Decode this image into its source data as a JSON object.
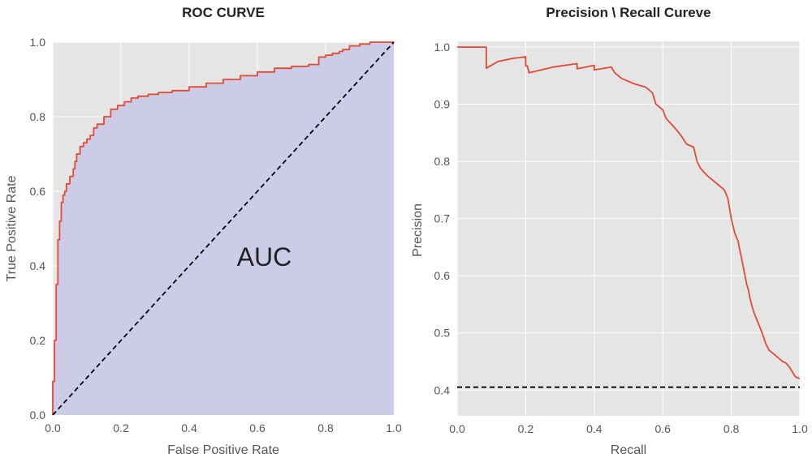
{
  "chart_data": [
    {
      "type": "area",
      "title": "ROC CURVE",
      "xlabel": "False Positive Rate",
      "ylabel": "True Positive Rate",
      "xlim": [
        0,
        1
      ],
      "ylim": [
        0,
        1
      ],
      "xticks": [
        "0.0",
        "0.2",
        "0.4",
        "0.6",
        "0.8",
        "1.0"
      ],
      "yticks": [
        "0.0",
        "0.2",
        "0.4",
        "0.6",
        "0.8",
        "1.0"
      ],
      "grid": true,
      "annotation": "AUC",
      "series": [
        {
          "role": "roc",
          "style": "step",
          "color": "#E24A33",
          "fill": "#CCCCE8",
          "x": [
            0,
            0,
            0.005,
            0.005,
            0.01,
            0.01,
            0.015,
            0.015,
            0.02,
            0.02,
            0.025,
            0.03,
            0.035,
            0.04,
            0.05,
            0.06,
            0.065,
            0.07,
            0.08,
            0.09,
            0.1,
            0.11,
            0.12,
            0.13,
            0.15,
            0.17,
            0.19,
            0.21,
            0.23,
            0.25,
            0.28,
            0.31,
            0.35,
            0.4,
            0.45,
            0.5,
            0.55,
            0.6,
            0.65,
            0.7,
            0.75,
            0.78,
            0.8,
            0.82,
            0.84,
            0.85,
            0.87,
            0.9,
            0.93,
            0.95,
            1.0
          ],
          "y": [
            0,
            0.09,
            0.09,
            0.2,
            0.21,
            0.35,
            0.36,
            0.47,
            0.48,
            0.52,
            0.57,
            0.59,
            0.6,
            0.62,
            0.64,
            0.66,
            0.68,
            0.7,
            0.72,
            0.73,
            0.74,
            0.75,
            0.77,
            0.78,
            0.8,
            0.82,
            0.83,
            0.84,
            0.85,
            0.855,
            0.86,
            0.865,
            0.87,
            0.88,
            0.89,
            0.9,
            0.91,
            0.92,
            0.93,
            0.935,
            0.94,
            0.96,
            0.965,
            0.97,
            0.975,
            0.98,
            0.99,
            0.995,
            1.0,
            1.0,
            1.0
          ]
        },
        {
          "role": "chance",
          "style": "dashed",
          "color": "#000000",
          "x": [
            0,
            1
          ],
          "y": [
            0,
            1
          ]
        }
      ]
    },
    {
      "type": "line",
      "title": "Precision \\ Recall Cureve",
      "xlabel": "Recall",
      "ylabel": "Precision",
      "xlim": [
        0,
        1
      ],
      "ylim": [
        0.355,
        1.01
      ],
      "xticks": [
        "0.0",
        "0.2",
        "0.4",
        "0.6",
        "0.8",
        "1.0"
      ],
      "yticks": [
        "0.4",
        "0.5",
        "0.6",
        "0.7",
        "0.8",
        "0.9",
        "1.0"
      ],
      "grid": true,
      "series": [
        {
          "role": "pr",
          "style": "line",
          "color": "#E24A33",
          "x": [
            0,
            0.08,
            0.085,
            0.085,
            0.12,
            0.16,
            0.2,
            0.2,
            0.205,
            0.21,
            0.21,
            0.28,
            0.35,
            0.35,
            0.4,
            0.4,
            0.45,
            0.46,
            0.47,
            0.48,
            0.5,
            0.52,
            0.55,
            0.57,
            0.58,
            0.59,
            0.6,
            0.61,
            0.63,
            0.64,
            0.65,
            0.67,
            0.69,
            0.7,
            0.71,
            0.73,
            0.74,
            0.75,
            0.76,
            0.78,
            0.79,
            0.8,
            0.81,
            0.82,
            0.83,
            0.84,
            0.845,
            0.85,
            0.855,
            0.86,
            0.865,
            0.87,
            0.88,
            0.89,
            0.9,
            0.91,
            0.92,
            0.93,
            0.94,
            0.95,
            0.96,
            0.97,
            0.98,
            0.985,
            0.99,
            1.0
          ],
          "y": [
            1.0,
            1.0,
            1.0,
            0.963,
            0.975,
            0.98,
            0.983,
            0.967,
            0.967,
            0.955,
            0.955,
            0.965,
            0.971,
            0.962,
            0.968,
            0.96,
            0.965,
            0.955,
            0.95,
            0.945,
            0.94,
            0.935,
            0.93,
            0.92,
            0.9,
            0.895,
            0.89,
            0.875,
            0.862,
            0.855,
            0.848,
            0.83,
            0.825,
            0.8,
            0.788,
            0.775,
            0.77,
            0.765,
            0.76,
            0.75,
            0.735,
            0.7,
            0.675,
            0.66,
            0.63,
            0.6,
            0.585,
            0.575,
            0.56,
            0.548,
            0.538,
            0.53,
            0.515,
            0.5,
            0.482,
            0.47,
            0.465,
            0.46,
            0.455,
            0.45,
            0.447,
            0.44,
            0.43,
            0.425,
            0.422,
            0.42
          ]
        },
        {
          "role": "baseline",
          "style": "dashed",
          "color": "#000000",
          "x": [
            0,
            1
          ],
          "y": [
            0.405,
            0.405
          ]
        }
      ]
    }
  ]
}
